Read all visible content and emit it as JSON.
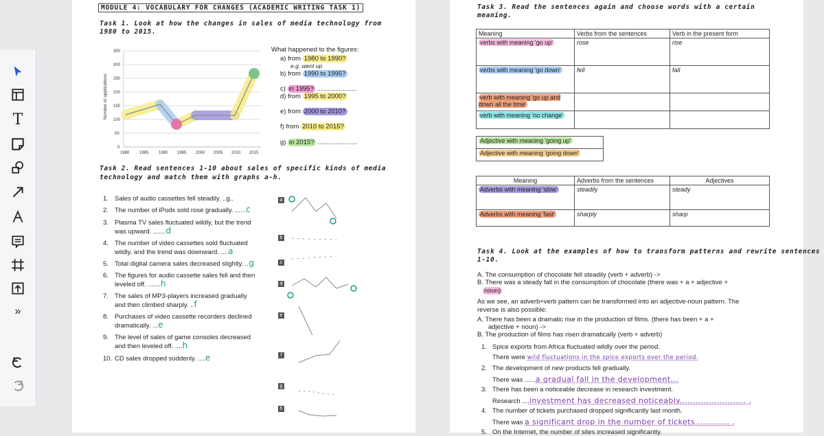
{
  "toolbar": {
    "items": [
      "cursor-icon",
      "frame-icon",
      "text-icon",
      "sticky-note-icon",
      "shapes-icon",
      "arrow-icon",
      "pen-icon",
      "comment-icon",
      "crop-icon",
      "upload-icon",
      "more-icon",
      "undo-icon",
      "redo-icon"
    ],
    "more_label": "»"
  },
  "left": {
    "title": "MODULE 4: VOCABULARY FOR CHANGES (ACADEMIC WRITING TASK 1)",
    "task1_l1": "Task 1. Look at how the changes in sales of media technology from",
    "task1_l2": "1980 to 2015.",
    "chart": {
      "ylabel": "Number of applications",
      "yticks": [
        "350",
        "300",
        "250",
        "200",
        "150",
        "100",
        "50",
        "0"
      ],
      "xticks": [
        "1980",
        "1985",
        "1990",
        "1995",
        "2000",
        "2005",
        "2010",
        "2015"
      ]
    },
    "questions": {
      "head": "What happened to the figures:",
      "a": "a)  from ",
      "a_hl": "1980 to 1990?",
      "eg": "e.g. went up",
      "b": "b)  from ",
      "b_hl": "1990 to 1995?",
      "c": "c)  ",
      "c_hl": "in 1995?",
      "d": "d)  from ",
      "d_hl": "1995 to 2000?",
      "e": "e)  from ",
      "e_hl": "2000 to 2010?",
      "f": "f)  from ",
      "f_hl": "2010 to 2015?",
      "g": "g)  ",
      "g_hl": "in 2015?",
      "dots": "......................"
    },
    "task2_l1": "Task 2. Read sentences 1-10 about sales of specific kinds of media",
    "task2_l2": "technology and match them with graphs a-h.",
    "sentences": [
      {
        "n": "1.",
        "t": "Sales of audio cassettes fell steadily. ..g..",
        "ans": ""
      },
      {
        "n": "2.",
        "t": "The number of iPods sold rose gradually. ......",
        "ans": "c"
      },
      {
        "n": "3.",
        "t": "Plasma TV sales fluctuated wildly, but the trend",
        "ans": ""
      },
      {
        "n": "",
        "t": "was upward. .......",
        "ans": "d"
      },
      {
        "n": "4.",
        "t": "The number of video cassettes sold fluctuated",
        "ans": ""
      },
      {
        "n": "",
        "t": "wildly, and the trend was downward. ....",
        "ans": "a"
      },
      {
        "n": "5.",
        "t": "Total digital camera sales decreased slightly. ..",
        "ans": "g"
      },
      {
        "n": "6.",
        "t": "The figures for audio cassette sales fell and then",
        "ans": ""
      },
      {
        "n": "",
        "t": "leveled off. .......",
        "ans": "h"
      },
      {
        "n": "7.",
        "t": "The sales of MP3-players increased gradually",
        "ans": ""
      },
      {
        "n": "",
        "t": "and then climbed sharply. ..",
        "ans": "f"
      },
      {
        "n": "8.",
        "t": "Purchases of video cassette recorders declined",
        "ans": ""
      },
      {
        "n": "",
        "t": "dramatically. ...",
        "ans": "e"
      },
      {
        "n": "9.",
        "t": "The level of sales of game consoles decreased",
        "ans": ""
      },
      {
        "n": "",
        "t": "and then leveled off. ....",
        "ans": "h"
      },
      {
        "n": "10.",
        "t": "CD sales dropped suddenly. ....",
        "ans": "e"
      }
    ],
    "graph_letters": [
      "a",
      "b",
      "c",
      "d",
      "e",
      "f",
      "g",
      "h"
    ]
  },
  "right": {
    "task3_l1": "Task 3. Read the sentences again and choose words with a certain",
    "task3_l2": "meaning.",
    "table1": {
      "headers": [
        "Meaning",
        "Verbs from the sentences",
        "Verb in the present form"
      ],
      "rows": [
        [
          "verbs with meaning 'go up'",
          "rose",
          "rise"
        ],
        [
          "verbs with meaning 'go down'",
          "fell",
          "fall"
        ],
        [
          "verb with meaning 'go up and down all the time'",
          "",
          ""
        ],
        [
          "verb with meaning 'no change'",
          "",
          ""
        ]
      ]
    },
    "table2": [
      "Adjective with meaning 'going up'",
      "Adjective with meaning 'going down'"
    ],
    "table3": {
      "headers": [
        "Meaning",
        "Adverbs from the sentences",
        "Adjectives"
      ],
      "rows": [
        [
          "Adverbs with meaning 'slow'",
          "steadily",
          "steady"
        ],
        [
          "Adverbs with meaning 'fast'",
          "sharply",
          "sharp"
        ]
      ]
    },
    "task4_l1": "Task 4. Look at the examples of how to transform patterns and rewrite sentences",
    "task4_l2": "1-10.",
    "exA": "A.  The consumption of chocolate fell steadily (verb + adverb) ->",
    "exB": "B.  There was a steady fall in the consumption of chocolate     (there was + a + adjective +",
    "exB2": "noun)",
    "see1": "As we see, an adverb+verb pattern can be transformed into an adjective-noun pattern. The",
    "see2": "reverse is also possible:",
    "revA1": "A.  There has been a dramatic rise in the production of films. (there has been + a +",
    "revA2": "adjective + noun) ->",
    "revB": "B.  The production of films has risen dramatically (verb + adverb)",
    "items": [
      {
        "n": "1.",
        "q": "Spice exports from Africa fluctuated wildly over the period.",
        "pre": "There were ",
        "ans": "wild fluctuations in the spice exports over the period."
      },
      {
        "n": "2.",
        "q": "The development of new products fell gradually.",
        "pre": "There was ......",
        "ans": "a gradual fall in the development..."
      },
      {
        "n": "3.",
        "q": "There has been a noticeable decrease in research investment.",
        "pre": "Research ....",
        "ans": "investment has decreased noticeably......................... ."
      },
      {
        "n": "4.",
        "q": "The number of tickets purchased dropped significantly last month.",
        "pre": "There was ",
        "ans": "a significant drop in the number of tickets............. ."
      },
      {
        "n": "5.",
        "q": "On the Internet, the number of sites increased significantly.",
        "pre": "",
        "ans": ""
      }
    ]
  },
  "colors": {
    "highlight_yellow": "#f6ec8a",
    "highlight_green": "#b9e5a0",
    "highlight_blue": "#a9cdf2",
    "highlight_pink": "#ee9bd2",
    "highlight_purple": "#a59be0",
    "highlight_orange": "#ee9e7a",
    "highlight_teal": "#8fe3e4",
    "ink_purple": "#7a3aaa",
    "ink_teal": "#1a9a8a",
    "toolbar_accent": "#1f5fd6"
  }
}
